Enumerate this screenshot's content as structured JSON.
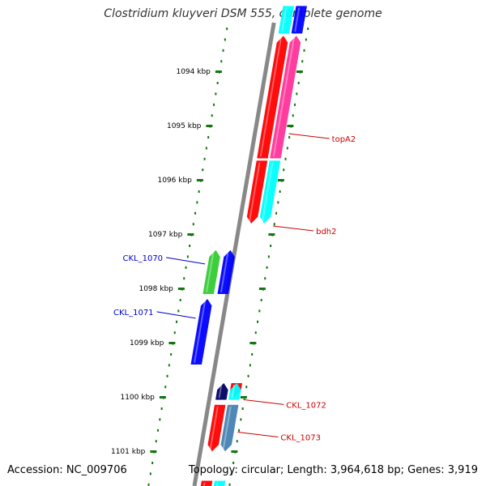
{
  "header": {
    "title": "Clostridium kluyveri DSM 555, complete genome"
  },
  "footer": {
    "accession": "Accession: NC_009706",
    "topology": "Topology: circular; Length: 3,964,618 bp; Genes: 3,919"
  },
  "ruler": {
    "ticks": [
      {
        "label": "1094 kbp",
        "pos_kbp": 1094
      },
      {
        "label": "1095 kbp",
        "pos_kbp": 1095
      },
      {
        "label": "1096 kbp",
        "pos_kbp": 1096
      },
      {
        "label": "1097 kbp",
        "pos_kbp": 1097
      },
      {
        "label": "1098 kbp",
        "pos_kbp": 1098
      },
      {
        "label": "1099 kbp",
        "pos_kbp": 1099
      },
      {
        "label": "1100 kbp",
        "pos_kbp": 1100
      },
      {
        "label": "1101 kbp",
        "pos_kbp": 1101
      }
    ]
  },
  "features": [
    {
      "strand": "+",
      "start_kbp": 1092.8,
      "end_kbp": 1093.3,
      "color": "#00ffff",
      "direction": "none"
    },
    {
      "strand": "+",
      "start_kbp": 1092.8,
      "end_kbp": 1093.3,
      "color": "#0000ff",
      "direction": "none"
    },
    {
      "strand": "+",
      "start_kbp": 1093.35,
      "end_kbp": 1095.6,
      "color": "#ff0000",
      "direction": "reverse"
    },
    {
      "strand": "+",
      "start_kbp": 1093.35,
      "end_kbp": 1095.6,
      "color": "#ff3399",
      "direction": "reverse"
    },
    {
      "strand": "+",
      "start_kbp": 1095.65,
      "end_kbp": 1096.8,
      "color": "#ff0000",
      "direction": "forward"
    },
    {
      "strand": "+",
      "start_kbp": 1095.65,
      "end_kbp": 1096.8,
      "color": "#00ffff",
      "direction": "forward"
    },
    {
      "strand": "-",
      "start_kbp": 1097.3,
      "end_kbp": 1098.1,
      "color": "#33cc33",
      "direction": "reverse"
    },
    {
      "strand": "-",
      "start_kbp": 1097.3,
      "end_kbp": 1098.1,
      "color": "#0000ff",
      "direction": "reverse"
    },
    {
      "strand": "-",
      "start_kbp": 1098.2,
      "end_kbp": 1099.4,
      "color": "#0000ff",
      "direction": "reverse"
    },
    {
      "strand": "+",
      "start_kbp": 1099.75,
      "end_kbp": 1100.0,
      "color": "#ff0000",
      "direction": "forward"
    },
    {
      "strand": "+",
      "start_kbp": 1099.75,
      "end_kbp": 1100.05,
      "color": "#000066",
      "direction": "reverse"
    },
    {
      "strand": "+",
      "start_kbp": 1099.75,
      "end_kbp": 1100.05,
      "color": "#00ffff",
      "direction": "reverse"
    },
    {
      "strand": "+",
      "start_kbp": 1100.15,
      "end_kbp": 1101.0,
      "color": "#ff0000",
      "direction": "forward"
    },
    {
      "strand": "+",
      "start_kbp": 1100.15,
      "end_kbp": 1101.0,
      "color": "#4682b4",
      "direction": "forward"
    },
    {
      "strand": "+",
      "start_kbp": 1101.55,
      "end_kbp": 1101.8,
      "color": "#ff0000",
      "direction": "none"
    },
    {
      "strand": "+",
      "start_kbp": 1101.55,
      "end_kbp": 1101.8,
      "color": "#00ffff",
      "direction": "none"
    }
  ],
  "labels": [
    {
      "text": "topA2",
      "color": "#cc0000",
      "anchor_kbp": 1095.15,
      "side": "right"
    },
    {
      "text": "bdh2",
      "color": "#cc0000",
      "anchor_kbp": 1096.85,
      "side": "right"
    },
    {
      "text": "CKL_1070",
      "color": "#0000cc",
      "anchor_kbp": 1097.55,
      "side": "left"
    },
    {
      "text": "CKL_1071",
      "color": "#0000cc",
      "anchor_kbp": 1098.55,
      "side": "left"
    },
    {
      "text": "CKL_1072",
      "color": "#cc0000",
      "anchor_kbp": 1100.05,
      "side": "right"
    },
    {
      "text": "CKL_1073",
      "color": "#cc0000",
      "anchor_kbp": 1100.65,
      "side": "right"
    }
  ],
  "colors": {
    "backbone": "#888888",
    "ruler_tick": "#117711",
    "ruler_dots": "#117711",
    "ruler_label": "#000000"
  }
}
